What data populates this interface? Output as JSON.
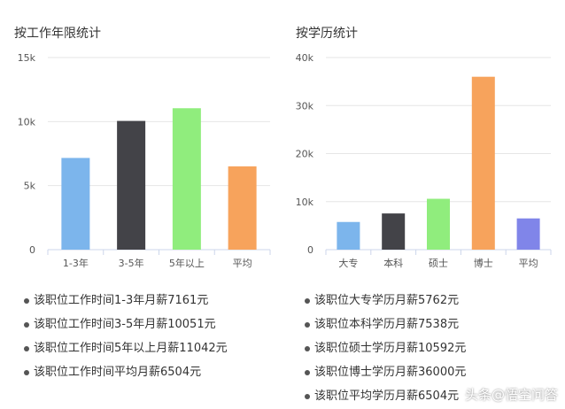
{
  "chart_data": [
    {
      "type": "bar",
      "title": "按工作年限统计",
      "categories": [
        "1-3年",
        "3-5年",
        "5年以上",
        "平均"
      ],
      "values": [
        7161,
        10051,
        11042,
        6504
      ],
      "colors": [
        "#7cb5ec",
        "#434348",
        "#90ed7d",
        "#f7a35c"
      ],
      "yticks": [
        0,
        5000,
        10000,
        15000
      ],
      "ytick_labels": [
        "0",
        "5k",
        "10k",
        "15k"
      ],
      "ylim": [
        0,
        15000
      ],
      "grid": true,
      "legend": "none"
    },
    {
      "type": "bar",
      "title": "按学历统计",
      "categories": [
        "大专",
        "本科",
        "硕士",
        "博士",
        "平均"
      ],
      "values": [
        5762,
        7538,
        10592,
        36000,
        6504
      ],
      "colors": [
        "#7cb5ec",
        "#434348",
        "#90ed7d",
        "#f7a35c",
        "#8085e9"
      ],
      "yticks": [
        0,
        10000,
        20000,
        30000,
        40000
      ],
      "ytick_labels": [
        "0",
        "10k",
        "20k",
        "30k",
        "40k"
      ],
      "ylim": [
        0,
        40000
      ],
      "grid": true,
      "legend": "none"
    }
  ],
  "notes_left": [
    "该职位工作时间1-3年月薪7161元",
    "该职位工作时间3-5年月薪10051元",
    "该职位工作时间5年以上月薪11042元",
    "该职位工作时间平均月薪6504元"
  ],
  "notes_right": [
    "该职位大专学历月薪5762元",
    "该职位本科学历月薪7538元",
    "该职位硕士学历月薪10592元",
    "该职位博士学历月薪36000元",
    "该职位平均学历月薪6504元"
  ],
  "watermark": "头条@悟空问答",
  "bullet_icon": "bullet-dot-icon",
  "colors": {
    "grid": "#e6e6e6",
    "axis": "#ccd6eb",
    "tick_text": "#555555"
  }
}
